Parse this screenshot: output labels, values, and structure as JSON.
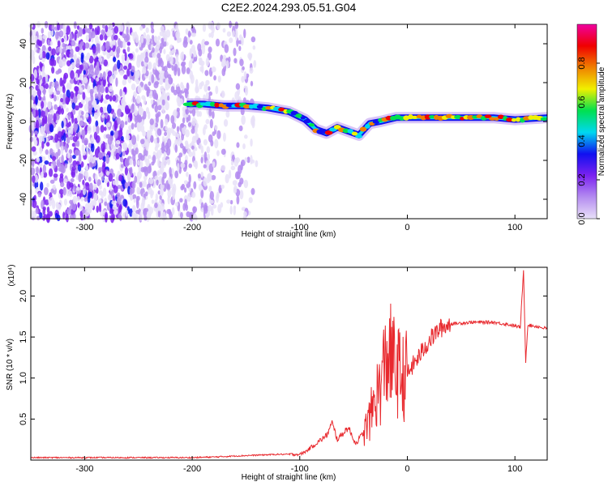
{
  "figure": {
    "title": "C2E2.2024.293.05.51.G04"
  },
  "chart_data": [
    {
      "type": "heatmap",
      "xlabel": "Height of straight line (km)",
      "ylabel": "Frequency (Hz)",
      "xlim": [
        -350,
        130
      ],
      "ylim": [
        -50,
        50
      ],
      "xticks": [
        -300,
        -200,
        -100,
        0,
        100
      ],
      "xtick_labels": [
        "-300",
        "-200",
        "-100",
        "0",
        "100"
      ],
      "yticks": [
        -40,
        -20,
        0,
        20,
        40
      ],
      "ytick_labels": [
        "-40",
        "-20",
        "0",
        "20",
        "40"
      ],
      "colorbar": {
        "label": "Normalized spectral amplitude",
        "range": [
          0,
          1
        ],
        "ticks": [
          0,
          0.2,
          0.4,
          0.6,
          0.8
        ],
        "tick_labels": [
          "0.0",
          "0.2",
          "0.4",
          "0.6",
          "0.8"
        ],
        "colors": [
          "#e8e0f8",
          "#b48cf0",
          "#7b22f0",
          "#1010f0",
          "#00d8f0",
          "#00e050",
          "#f0f000",
          "#f08000",
          "#f00000",
          "#f000a0"
        ]
      },
      "signal_track": {
        "x": [
          -205,
          -190,
          -170,
          -150,
          -130,
          -110,
          -95,
          -85,
          -75,
          -65,
          -55,
          -45,
          -35,
          -25,
          -10,
          0,
          20,
          40,
          60,
          80,
          100,
          130
        ],
        "y": [
          9,
          9,
          8,
          8,
          7,
          5,
          1,
          -4,
          -6,
          -3,
          -5,
          -7,
          -1,
          0,
          2,
          2,
          2,
          2,
          2,
          2,
          1,
          2
        ],
        "peak_amplitude": 0.85
      },
      "noise_region_x": [
        -350,
        -140
      ],
      "grid": false
    },
    {
      "type": "line",
      "xlabel": "Height of straight line (km)",
      "ylabel": "SNR (10 * v/v)",
      "y_multiplier_label": "(x10⁴)",
      "xlim": [
        -350,
        130
      ],
      "ylim": [
        0,
        2.35
      ],
      "xticks": [
        -300,
        -200,
        -100,
        0,
        100
      ],
      "xtick_labels": [
        "-300",
        "-200",
        "-100",
        "0",
        "100"
      ],
      "yticks": [
        0.5,
        1.0,
        1.5,
        2.0
      ],
      "ytick_labels": [
        "0.5",
        "1.0",
        "1.5",
        "2.0"
      ],
      "color": "#e8282d",
      "series": [
        {
          "x": [
            -350,
            -300,
            -250,
            -200,
            -175,
            -160,
            -140,
            -120,
            -100,
            -95,
            -85,
            -75,
            -70,
            -65,
            -55,
            -48,
            -40,
            -35,
            -30,
            -25,
            -22,
            -18,
            -12,
            -5,
            0,
            5,
            10,
            20,
            30,
            40,
            60,
            80,
            95,
            105,
            108,
            110,
            112,
            115,
            120,
            130
          ],
          "y": [
            0.03,
            0.03,
            0.03,
            0.03,
            0.04,
            0.05,
            0.06,
            0.07,
            0.07,
            0.1,
            0.2,
            0.3,
            0.45,
            0.25,
            0.4,
            0.2,
            0.35,
            0.5,
            0.75,
            0.9,
            1.1,
            1.3,
            1.15,
            1.0,
            1.05,
            1.15,
            1.25,
            1.45,
            1.6,
            1.66,
            1.68,
            1.68,
            1.65,
            1.62,
            2.3,
            1.2,
            1.65,
            1.64,
            1.63,
            1.6
          ]
        }
      ],
      "grid": false
    }
  ]
}
